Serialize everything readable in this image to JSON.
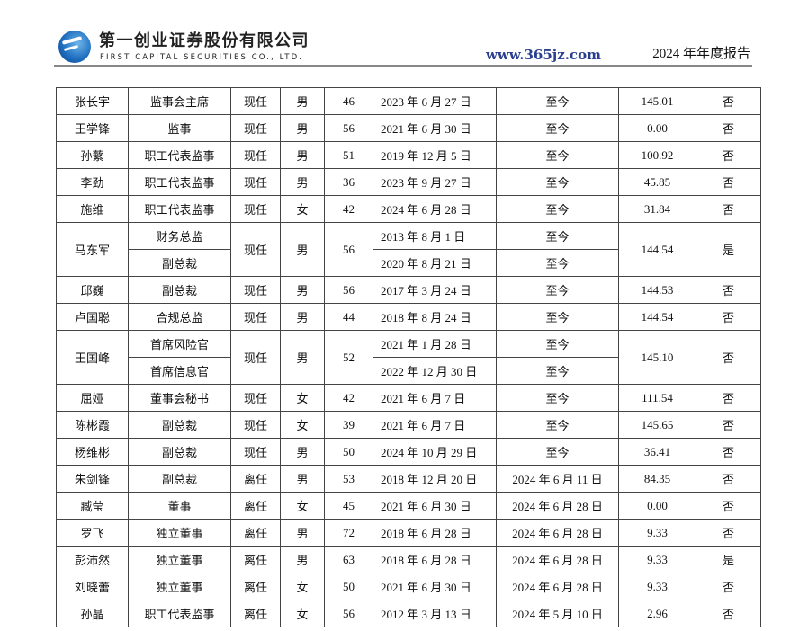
{
  "header": {
    "company_cn": "第一创业证券股份有限公司",
    "company_en": "FIRST CAPITAL SECURITIES CO., LTD.",
    "report_title": "2024 年年度报告",
    "logo_color": "#1f6fc0"
  },
  "table": {
    "rows": [
      {
        "name": "张长宇",
        "positions": [
          "监事会主席"
        ],
        "status": "现任",
        "gender": "男",
        "age": "46",
        "starts": [
          "2023 年 6 月 27 日"
        ],
        "ends": [
          "至今"
        ],
        "pay": "145.01",
        "related": "否"
      },
      {
        "name": "王学锋",
        "positions": [
          "监事"
        ],
        "status": "现任",
        "gender": "男",
        "age": "56",
        "starts": [
          "2021 年 6 月 30 日"
        ],
        "ends": [
          "至今"
        ],
        "pay": "0.00",
        "related": "否"
      },
      {
        "name": "孙蘩",
        "positions": [
          "职工代表监事"
        ],
        "status": "现任",
        "gender": "男",
        "age": "51",
        "starts": [
          "2019 年 12 月 5 日"
        ],
        "ends": [
          "至今"
        ],
        "pay": "100.92",
        "related": "否"
      },
      {
        "name": "李劲",
        "positions": [
          "职工代表监事"
        ],
        "status": "现任",
        "gender": "男",
        "age": "36",
        "starts": [
          "2023 年 9 月 27 日"
        ],
        "ends": [
          "至今"
        ],
        "pay": "45.85",
        "related": "否"
      },
      {
        "name": "施维",
        "positions": [
          "职工代表监事"
        ],
        "status": "现任",
        "gender": "女",
        "age": "42",
        "starts": [
          "2024 年 6 月 28 日"
        ],
        "ends": [
          "至今"
        ],
        "pay": "31.84",
        "related": "否"
      },
      {
        "name": "马东军",
        "positions": [
          "财务总监",
          "副总裁"
        ],
        "status": "现任",
        "gender": "男",
        "age": "56",
        "starts": [
          "2013 年 8 月 1 日",
          "2020 年 8 月 21 日"
        ],
        "ends": [
          "至今",
          "至今"
        ],
        "pay": "144.54",
        "related": "是"
      },
      {
        "name": "邱巍",
        "positions": [
          "副总裁"
        ],
        "status": "现任",
        "gender": "男",
        "age": "56",
        "starts": [
          "2017 年 3 月 24 日"
        ],
        "ends": [
          "至今"
        ],
        "pay": "144.53",
        "related": "否"
      },
      {
        "name": "卢国聪",
        "positions": [
          "合规总监"
        ],
        "status": "现任",
        "gender": "男",
        "age": "44",
        "starts": [
          "2018 年 8 月 24 日"
        ],
        "ends": [
          "至今"
        ],
        "pay": "144.54",
        "related": "否"
      },
      {
        "name": "王国峰",
        "positions": [
          "首席风险官",
          "首席信息官"
        ],
        "status": "现任",
        "gender": "男",
        "age": "52",
        "starts": [
          "2021 年 1 月 28 日",
          "2022 年 12 月 30 日"
        ],
        "ends": [
          "至今",
          "至今"
        ],
        "pay": "145.10",
        "related": "否"
      },
      {
        "name": "屈娅",
        "positions": [
          "董事会秘书"
        ],
        "status": "现任",
        "gender": "女",
        "age": "42",
        "starts": [
          "2021 年 6 月 7 日"
        ],
        "ends": [
          "至今"
        ],
        "pay": "111.54",
        "related": "否"
      },
      {
        "name": "陈彬霞",
        "positions": [
          "副总裁"
        ],
        "status": "现任",
        "gender": "女",
        "age": "39",
        "starts": [
          "2021 年 6 月 7 日"
        ],
        "ends": [
          "至今"
        ],
        "pay": "145.65",
        "related": "否"
      },
      {
        "name": "杨维彬",
        "positions": [
          "副总裁"
        ],
        "status": "现任",
        "gender": "男",
        "age": "50",
        "starts": [
          "2024 年 10 月 29 日"
        ],
        "ends": [
          "至今"
        ],
        "pay": "36.41",
        "related": "否"
      },
      {
        "name": "朱剑锋",
        "positions": [
          "副总裁"
        ],
        "status": "离任",
        "gender": "男",
        "age": "53",
        "starts": [
          "2018 年 12 月 20 日"
        ],
        "ends": [
          "2024 年 6 月 11 日"
        ],
        "pay": "84.35",
        "related": "否"
      },
      {
        "name": "臧莹",
        "positions": [
          "董事"
        ],
        "status": "离任",
        "gender": "女",
        "age": "45",
        "starts": [
          "2021 年 6 月 30 日"
        ],
        "ends": [
          "2024 年 6 月 28 日"
        ],
        "pay": "0.00",
        "related": "否"
      },
      {
        "name": "罗飞",
        "positions": [
          "独立董事"
        ],
        "status": "离任",
        "gender": "男",
        "age": "72",
        "starts": [
          "2018 年 6 月 28 日"
        ],
        "ends": [
          "2024 年 6 月 28 日"
        ],
        "pay": "9.33",
        "related": "否"
      },
      {
        "name": "彭沛然",
        "positions": [
          "独立董事"
        ],
        "status": "离任",
        "gender": "男",
        "age": "63",
        "starts": [
          "2018 年 6 月 28 日"
        ],
        "ends": [
          "2024 年 6 月 28 日"
        ],
        "pay": "9.33",
        "related": "是"
      },
      {
        "name": "刘晓蕾",
        "positions": [
          "独立董事"
        ],
        "status": "离任",
        "gender": "女",
        "age": "50",
        "starts": [
          "2021 年 6 月 30 日"
        ],
        "ends": [
          "2024 年 6 月 28 日"
        ],
        "pay": "9.33",
        "related": "否"
      },
      {
        "name": "孙晶",
        "positions": [
          "职工代表监事"
        ],
        "status": "离任",
        "gender": "女",
        "age": "56",
        "starts": [
          "2012 年 3 月 13 日"
        ],
        "ends": [
          "2024 年 5 月 10 日"
        ],
        "pay": "2.96",
        "related": "否"
      }
    ]
  },
  "watermark": "www.365jz.com"
}
